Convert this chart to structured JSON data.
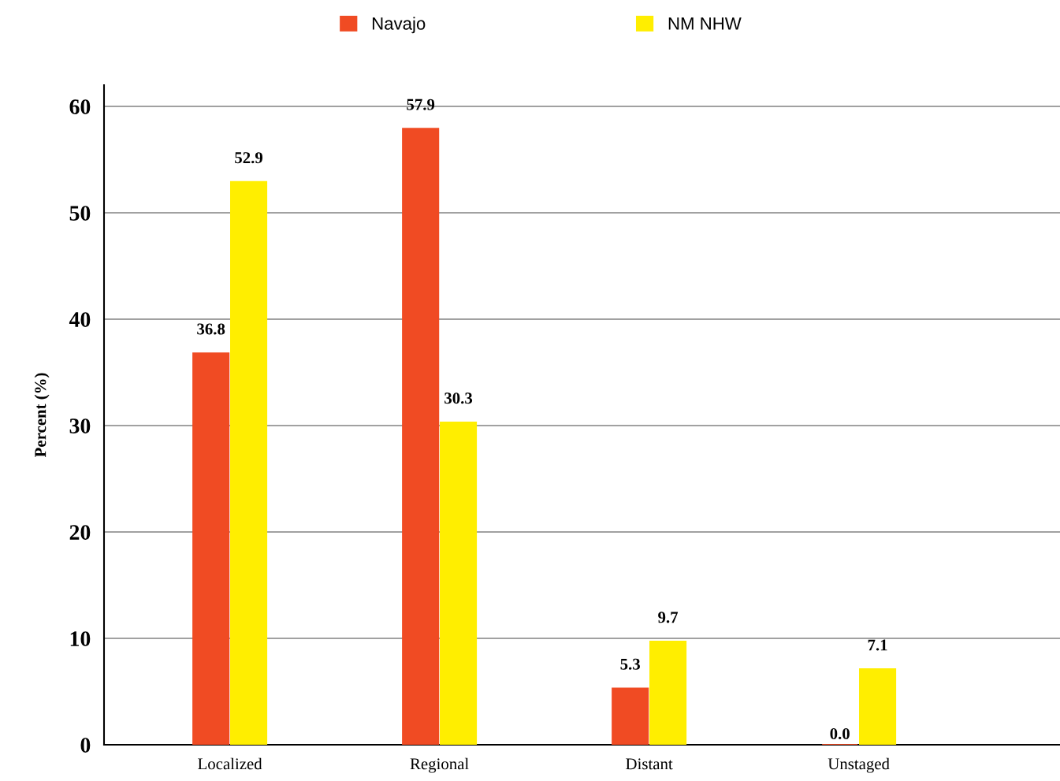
{
  "chart_data": {
    "type": "bar",
    "ylabel": "Percent (%)",
    "categories": [
      "Localized",
      "Regional",
      "Distant",
      "Unstaged"
    ],
    "series": [
      {
        "name": "Navajo",
        "color": "#f04b23",
        "values": [
          36.8,
          57.9,
          5.3,
          0.0
        ],
        "value_labels": [
          "36.8",
          "57.9",
          "5.3",
          "0.0"
        ]
      },
      {
        "name": "NM NHW",
        "color": "#ffee00",
        "values": [
          52.9,
          30.3,
          9.7,
          7.1
        ],
        "value_labels": [
          "52.9",
          "30.3",
          "9.7",
          "7.1"
        ]
      }
    ],
    "ylim": [
      0,
      62
    ],
    "yticks": [
      0,
      10,
      20,
      30,
      40,
      50,
      60
    ],
    "grid": "y",
    "legend": "top"
  }
}
